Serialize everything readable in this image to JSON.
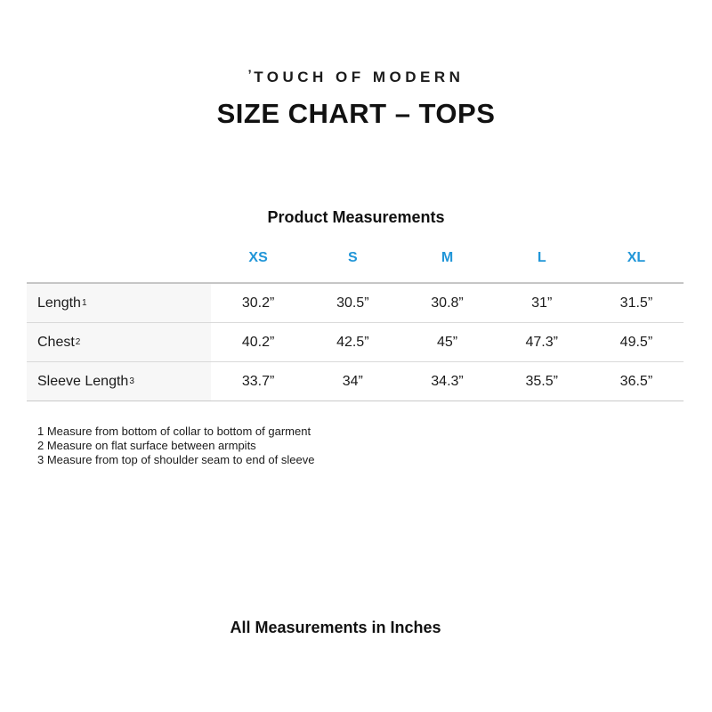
{
  "logo": {
    "mark": "ʼ",
    "text": "TOUCH OF MODERN"
  },
  "title": "SIZE CHART – TOPS",
  "table": {
    "caption": "Product Measurements",
    "header_color": "#2196d8",
    "label_bg": "#f7f7f7",
    "columns": [
      "XS",
      "S",
      "M",
      "L",
      "XL"
    ],
    "rows": [
      {
        "label": "Length",
        "footnote_ref": "1",
        "values": [
          "30.2”",
          "30.5”",
          "30.8”",
          "31”",
          "31.5”"
        ]
      },
      {
        "label": "Chest",
        "footnote_ref": "2",
        "values": [
          "40.2”",
          "42.5”",
          "45”",
          "47.3”",
          "49.5”"
        ]
      },
      {
        "label": "Sleeve Length",
        "footnote_ref": "3",
        "values": [
          "33.7”",
          "34”",
          "34.3”",
          "35.5”",
          "36.5”"
        ]
      }
    ]
  },
  "footnotes": [
    "1 Measure from bottom of collar to bottom of garment",
    "2 Measure on flat surface between armpits",
    "3 Measure from top of shoulder seam to end of sleeve"
  ],
  "footer_note": "All Measurements in Inches"
}
